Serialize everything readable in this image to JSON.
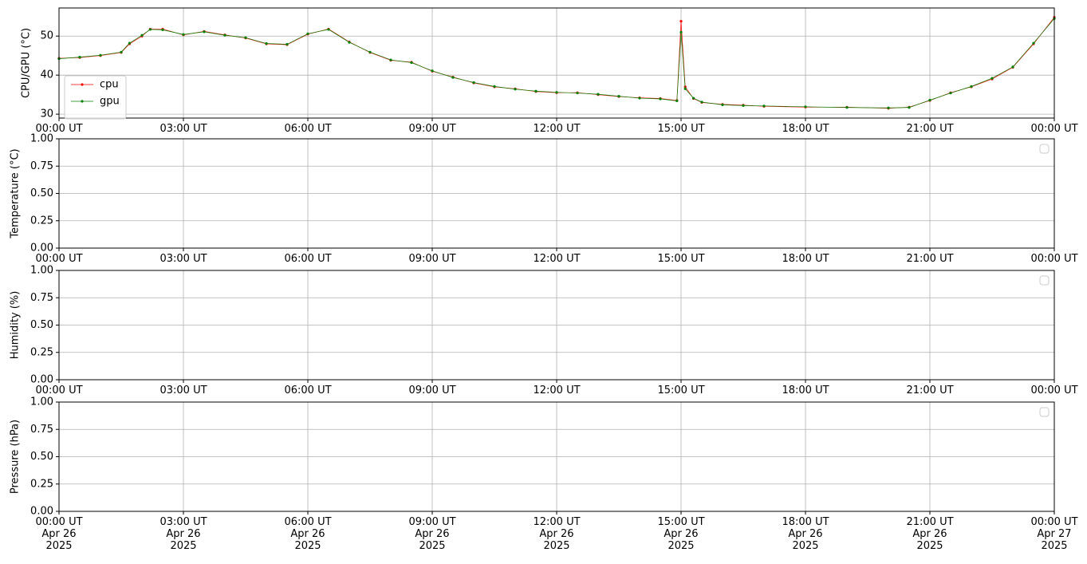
{
  "chart_data": [
    {
      "type": "line",
      "ylabel": "CPU/GPU (°C)",
      "xlim": [
        0,
        24
      ],
      "ylim": [
        29,
        57.2
      ],
      "yticks": [
        30,
        40,
        50
      ],
      "xticks": [
        {
          "value": 0,
          "label": "00:00 UT"
        },
        {
          "value": 3,
          "label": "03:00 UT"
        },
        {
          "value": 6,
          "label": "06:00 UT"
        },
        {
          "value": 9,
          "label": "09:00 UT"
        },
        {
          "value": 12,
          "label": "12:00 UT"
        },
        {
          "value": 15,
          "label": "15:00 UT"
        },
        {
          "value": 18,
          "label": "18:00 UT"
        },
        {
          "value": 21,
          "label": "21:00 UT"
        },
        {
          "value": 24,
          "label": "00:00 UT"
        }
      ],
      "grid": true,
      "legend": "upper left",
      "x": [
        0,
        0.5,
        1,
        1.5,
        1.7,
        2,
        2.2,
        2.5,
        3,
        3.5,
        4,
        4.5,
        5,
        5.5,
        6,
        6.5,
        7,
        7.5,
        8,
        8.5,
        9,
        9.5,
        10,
        10.5,
        11,
        11.5,
        12,
        12.5,
        13,
        13.5,
        14,
        14.5,
        14.9,
        15,
        15.1,
        15.3,
        15.5,
        16,
        16.5,
        17,
        18,
        19,
        20,
        20.5,
        21,
        21.5,
        22,
        22.5,
        23,
        23.5,
        24
      ],
      "series": [
        {
          "name": "cpu",
          "color": "#ff0000",
          "values": [
            44.3,
            44.5,
            45,
            45.8,
            48,
            50,
            51.8,
            51.8,
            50.3,
            51.2,
            50.3,
            49.5,
            48,
            47.8,
            50.5,
            51.8,
            48.5,
            45.8,
            43.8,
            43.3,
            41,
            39.5,
            38,
            37,
            36.5,
            35.8,
            35.5,
            35.5,
            35,
            34.5,
            34.2,
            34,
            33.5,
            53.8,
            37,
            34,
            33,
            32.5,
            32.3,
            32,
            31.8,
            31.8,
            31.5,
            31.8,
            33.5,
            35.5,
            37,
            39,
            42,
            48,
            54.8
          ]
        },
        {
          "name": "gpu",
          "color": "#008000",
          "values": [
            44.2,
            44.6,
            45.1,
            45.9,
            48.2,
            50.2,
            51.7,
            51.6,
            50.4,
            51.1,
            50.2,
            49.6,
            48.1,
            47.9,
            50.6,
            51.7,
            48.4,
            45.9,
            43.9,
            43.2,
            41.1,
            39.4,
            38.1,
            37.1,
            36.4,
            35.9,
            35.6,
            35.4,
            35.1,
            34.6,
            34.1,
            33.9,
            33.4,
            51,
            36.5,
            34.1,
            33.1,
            32.4,
            32.2,
            32.1,
            31.9,
            31.7,
            31.6,
            31.7,
            33.6,
            35.4,
            37.1,
            39.2,
            42.1,
            48.2,
            54.5
          ]
        }
      ]
    },
    {
      "type": "line",
      "ylabel": "Temperature (°C)",
      "xlim": [
        0,
        24
      ],
      "ylim": [
        0,
        1
      ],
      "yticks": [
        {
          "value": 0,
          "label": "0.00"
        },
        {
          "value": 0.25,
          "label": "0.25"
        },
        {
          "value": 0.5,
          "label": "0.50"
        },
        {
          "value": 0.75,
          "label": "0.75"
        },
        {
          "value": 1,
          "label": "1.00"
        }
      ],
      "xticks": [
        {
          "value": 0,
          "label": "00:00 UT"
        },
        {
          "value": 3,
          "label": "03:00 UT"
        },
        {
          "value": 6,
          "label": "06:00 UT"
        },
        {
          "value": 9,
          "label": "09:00 UT"
        },
        {
          "value": 12,
          "label": "12:00 UT"
        },
        {
          "value": 15,
          "label": "15:00 UT"
        },
        {
          "value": 18,
          "label": "18:00 UT"
        },
        {
          "value": 21,
          "label": "21:00 UT"
        },
        {
          "value": 24,
          "label": "00:00 UT"
        }
      ],
      "grid": true,
      "legend": "upper right",
      "series": []
    },
    {
      "type": "line",
      "ylabel": "Humidity (%)",
      "xlim": [
        0,
        24
      ],
      "ylim": [
        0,
        1
      ],
      "yticks": [
        {
          "value": 0,
          "label": "0.00"
        },
        {
          "value": 0.25,
          "label": "0.25"
        },
        {
          "value": 0.5,
          "label": "0.50"
        },
        {
          "value": 0.75,
          "label": "0.75"
        },
        {
          "value": 1,
          "label": "1.00"
        }
      ],
      "xticks": [
        {
          "value": 0,
          "label": "00:00 UT"
        },
        {
          "value": 3,
          "label": "03:00 UT"
        },
        {
          "value": 6,
          "label": "06:00 UT"
        },
        {
          "value": 9,
          "label": "09:00 UT"
        },
        {
          "value": 12,
          "label": "12:00 UT"
        },
        {
          "value": 15,
          "label": "15:00 UT"
        },
        {
          "value": 18,
          "label": "18:00 UT"
        },
        {
          "value": 21,
          "label": "21:00 UT"
        },
        {
          "value": 24,
          "label": "00:00 UT"
        }
      ],
      "grid": true,
      "legend": "upper right",
      "series": []
    },
    {
      "type": "line",
      "ylabel": "Pressure (hPa)",
      "xlim": [
        0,
        24
      ],
      "ylim": [
        0,
        1
      ],
      "yticks": [
        {
          "value": 0,
          "label": "0.00"
        },
        {
          "value": 0.25,
          "label": "0.25"
        },
        {
          "value": 0.5,
          "label": "0.50"
        },
        {
          "value": 0.75,
          "label": "0.75"
        },
        {
          "value": 1,
          "label": "1.00"
        }
      ],
      "xticks": [
        {
          "value": 0,
          "label": "00:00 UT\nApr 26\n2025"
        },
        {
          "value": 3,
          "label": "03:00 UT\nApr 26\n2025"
        },
        {
          "value": 6,
          "label": "06:00 UT\nApr 26\n2025"
        },
        {
          "value": 9,
          "label": "09:00 UT\nApr 26\n2025"
        },
        {
          "value": 12,
          "label": "12:00 UT\nApr 26\n2025"
        },
        {
          "value": 15,
          "label": "15:00 UT\nApr 26\n2025"
        },
        {
          "value": 18,
          "label": "18:00 UT\nApr 26\n2025"
        },
        {
          "value": 21,
          "label": "21:00 UT\nApr 26\n2025"
        },
        {
          "value": 24,
          "label": "00:00 UT\nApr 27\n2025"
        }
      ],
      "grid": true,
      "legend": "upper right",
      "series": []
    }
  ]
}
